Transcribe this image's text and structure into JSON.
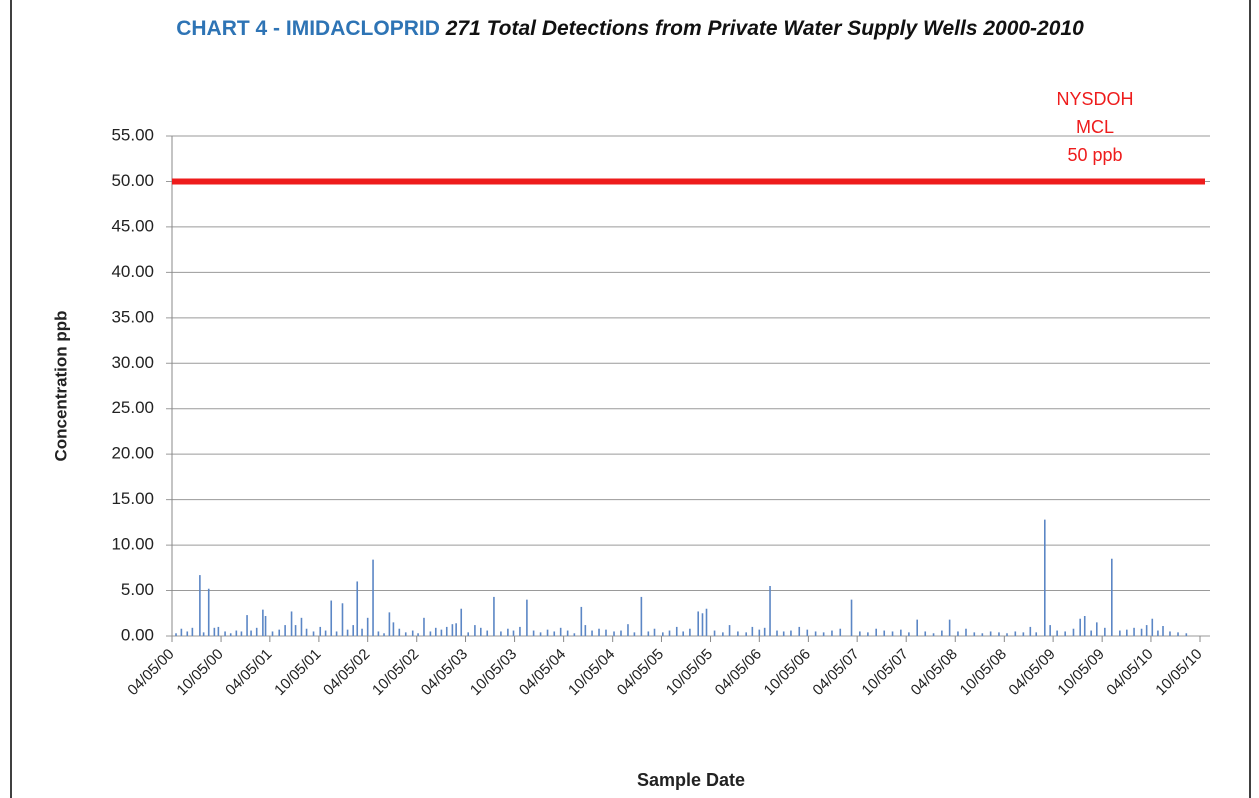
{
  "chart_data": {
    "type": "bar",
    "title": "CHART 4 - IMIDACLOPRID",
    "subtitle": "271 Total Detections from Private Water Supply Wells 2000-2010",
    "y_label": "Concentration ppb",
    "x_label": "Sample Date",
    "color": "#5b86c5",
    "grid": true,
    "reference_line": {
      "value": 50,
      "color": "#ee1c1c",
      "label": [
        "NYSDOH",
        "MCL",
        "50 ppb"
      ]
    },
    "ylim": [
      0,
      55
    ],
    "yticks": [
      {
        "value": 0,
        "label": "0.00"
      },
      {
        "value": 5,
        "label": "5.00"
      },
      {
        "value": 10,
        "label": "10.00"
      },
      {
        "value": 15,
        "label": "15.00"
      },
      {
        "value": 20,
        "label": "20.00"
      },
      {
        "value": 25,
        "label": "25.00"
      },
      {
        "value": 30,
        "label": "30.00"
      },
      {
        "value": 35,
        "label": "35.00"
      },
      {
        "value": 40,
        "label": "40.00"
      },
      {
        "value": 45,
        "label": "45.00"
      },
      {
        "value": 50,
        "label": "50.00"
      },
      {
        "value": 55,
        "label": "55.00"
      }
    ],
    "xlim": [
      "04/05/00",
      "10/05/10"
    ],
    "xticks": [
      "04/05/00",
      "10/05/00",
      "04/05/01",
      "10/05/01",
      "04/05/02",
      "10/05/02",
      "04/05/03",
      "10/05/03",
      "04/05/04",
      "10/05/04",
      "04/05/05",
      "10/05/05",
      "04/05/06",
      "10/05/06",
      "04/05/07",
      "10/05/07",
      "04/05/08",
      "10/05/08",
      "04/05/09",
      "10/05/09",
      "04/05/10",
      "10/05/10"
    ],
    "x": [
      "04/20/00",
      "05/10/00",
      "06/01/00",
      "06/20/00",
      "07/18/00",
      "08/01/00",
      "08/20/00",
      "09/10/00",
      "09/25/00",
      "10/20/00",
      "11/10/00",
      "12/01/00",
      "12/20/00",
      "01/10/01",
      "01/25/01",
      "02/15/01",
      "03/10/01",
      "03/20/01",
      "04/15/01",
      "05/10/01",
      "06/01/01",
      "06/25/01",
      "07/10/01",
      "08/01/01",
      "08/20/01",
      "09/15/01",
      "10/10/01",
      "10/30/01",
      "11/20/01",
      "12/10/01",
      "01/01/02",
      "01/20/02",
      "02/10/02",
      "02/25/02",
      "03/15/02",
      "04/05/02",
      "04/25/02",
      "05/15/02",
      "06/05/02",
      "06/25/02",
      "07/10/02",
      "08/01/02",
      "08/25/02",
      "09/20/02",
      "10/10/02",
      "11/01/02",
      "11/25/02",
      "12/15/02",
      "01/05/03",
      "01/25/03",
      "02/15/03",
      "03/01/03",
      "03/20/03",
      "04/15/03",
      "05/10/03",
      "06/01/03",
      "06/25/03",
      "07/20/03",
      "08/15/03",
      "09/10/03",
      "10/01/03",
      "10/25/03",
      "11/20/03",
      "12/15/03",
      "01/10/04",
      "02/05/04",
      "03/01/04",
      "03/25/04",
      "04/20/04",
      "05/15/04",
      "06/10/04",
      "06/25/04",
      "07/20/04",
      "08/15/04",
      "09/10/04",
      "10/10/04",
      "11/05/04",
      "12/01/04",
      "12/25/04",
      "01/20/05",
      "02/15/05",
      "03/10/05",
      "04/10/05",
      "05/05/05",
      "06/01/05",
      "06/25/05",
      "07/20/05",
      "08/20/05",
      "09/05/05",
      "09/20/05",
      "10/20/05",
      "11/20/05",
      "12/15/05",
      "01/15/06",
      "02/15/06",
      "03/10/06",
      "04/05/06",
      "04/25/06",
      "05/15/06",
      "06/10/06",
      "07/05/06",
      "08/01/06",
      "09/01/06",
      "10/01/06",
      "11/01/06",
      "12/01/06",
      "01/01/07",
      "02/01/07",
      "03/15/07",
      "04/15/07",
      "05/15/07",
      "06/15/07",
      "07/15/07",
      "08/15/07",
      "09/15/07",
      "10/15/07",
      "11/15/07",
      "12/15/07",
      "01/15/08",
      "02/15/08",
      "03/15/08",
      "04/15/08",
      "05/15/08",
      "06/15/08",
      "07/15/08",
      "08/15/08",
      "09/15/08",
      "10/15/08",
      "11/15/08",
      "12/15/08",
      "01/10/09",
      "02/01/09",
      "03/05/09",
      "03/25/09",
      "04/20/09",
      "05/20/09",
      "06/20/09",
      "07/15/09",
      "08/01/09",
      "08/25/09",
      "09/15/09",
      "10/15/09",
      "11/10/09",
      "12/10/09",
      "01/05/10",
      "02/01/10",
      "03/01/10",
      "03/20/10",
      "04/10/10",
      "05/01/10",
      "05/20/10",
      "06/15/10",
      "07/15/10",
      "08/15/10"
    ],
    "values": [
      0.3,
      0.8,
      0.5,
      0.9,
      6.7,
      0.4,
      5.2,
      0.9,
      1.0,
      0.5,
      0.3,
      0.6,
      0.5,
      2.3,
      0.6,
      0.9,
      2.9,
      2.2,
      0.5,
      0.7,
      1.2,
      2.7,
      1.2,
      2.0,
      0.8,
      0.5,
      1.0,
      0.6,
      3.9,
      0.5,
      3.6,
      0.7,
      1.2,
      6.0,
      0.8,
      2.0,
      8.4,
      0.5,
      0.3,
      2.6,
      1.5,
      0.8,
      0.4,
      0.6,
      0.3,
      2.0,
      0.5,
      0.9,
      0.7,
      1.0,
      1.3,
      1.4,
      3.0,
      0.4,
      1.2,
      0.9,
      0.6,
      4.3,
      0.5,
      0.8,
      0.6,
      1.0,
      4.0,
      0.6,
      0.4,
      0.7,
      0.5,
      0.9,
      0.6,
      0.3,
      3.2,
      1.2,
      0.6,
      0.8,
      0.7,
      0.5,
      0.6,
      1.3,
      0.4,
      4.3,
      0.5,
      0.8,
      0.4,
      0.6,
      1.0,
      0.5,
      0.8,
      2.7,
      2.5,
      3.0,
      0.6,
      0.4,
      1.2,
      0.5,
      0.4,
      1.0,
      0.7,
      0.9,
      5.5,
      0.6,
      0.5,
      0.6,
      1.0,
      0.7,
      0.5,
      0.4,
      0.6,
      0.8,
      4.0,
      0.5,
      0.4,
      0.8,
      0.6,
      0.5,
      0.7,
      0.4,
      1.8,
      0.5,
      0.3,
      0.6,
      1.8,
      0.5,
      0.8,
      0.4,
      0.3,
      0.5,
      0.4,
      0.3,
      0.5,
      0.4,
      1.0,
      0.4,
      12.8,
      1.2,
      0.6,
      0.5,
      0.8,
      1.9,
      2.2,
      0.6,
      1.5,
      0.9,
      8.5,
      0.6,
      0.7,
      0.9,
      0.8,
      1.2,
      1.9,
      0.6,
      1.1,
      0.5,
      0.4,
      0.3
    ]
  }
}
